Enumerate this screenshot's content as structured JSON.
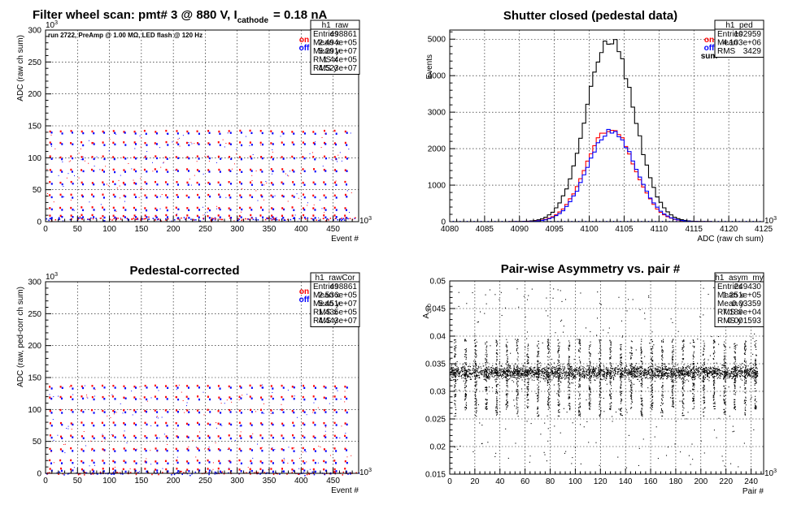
{
  "chart_data": [
    {
      "id": "raw",
      "type": "scatter",
      "title": "Filter wheel scan: pmt#   3 @   880 V, I",
      "title_sub": "cathode",
      "title_tail": "= 0.18 nA",
      "annotation": "run 2722, PreAmp @ 1.00 MΩ, LED flash @  120 Hz",
      "xlabel": "Event #",
      "ylabel": "ADC (raw ch sum)",
      "x_exponent": "10",
      "x_exponent_power": "3",
      "y_exponent": "10",
      "y_exponent_power": "3",
      "xlim": [
        0,
        490
      ],
      "ylim": [
        0,
        300
      ],
      "xticks": [
        "0",
        "50",
        "100",
        "150",
        "200",
        "250",
        "300",
        "350",
        "400",
        "450"
      ],
      "yticks": [
        "0",
        "50",
        "100",
        "150",
        "200",
        "250",
        "300"
      ],
      "grid": true,
      "legend": [
        {
          "label": "on",
          "color": "#ff0000"
        },
        {
          "label": "off",
          "color": "#0000ff"
        }
      ],
      "stats": {
        "name": "h1_raw",
        "rows": [
          [
            "Entries",
            "498861"
          ],
          [
            "Mean x",
            "2.494e+05"
          ],
          [
            "Mean y",
            "5.291e+07"
          ],
          [
            "RMS x",
            "1.44e+05"
          ],
          [
            "RMS y",
            "4.523e+07"
          ]
        ]
      },
      "series": [
        {
          "name": "on",
          "color": "#ff0000"
        },
        {
          "name": "off",
          "color": "#0000ff"
        }
      ],
      "period": 16.5,
      "levels": [
        140,
        122,
        100,
        80,
        60,
        40,
        20,
        8
      ],
      "baseline": 5
    },
    {
      "id": "ped",
      "type": "line",
      "title": "Shutter closed (pedestal data)",
      "xlabel": "ADC (raw ch sum)",
      "ylabel": "Events",
      "x_exponent": "10",
      "x_exponent_power": "3",
      "xlim": [
        4080,
        4125
      ],
      "ylim": [
        0,
        5250
      ],
      "xticks": [
        "4080",
        "4085",
        "4090",
        "4095",
        "4100",
        "4105",
        "4110",
        "4115",
        "4120",
        "4125"
      ],
      "yticks": [
        "0",
        "1000",
        "2000",
        "3000",
        "4000",
        "5000"
      ],
      "grid": true,
      "legend": [
        {
          "label": "on",
          "color": "#ff0000"
        },
        {
          "label": "off",
          "color": "#0000ff"
        },
        {
          "label": "sum",
          "color": "#000000"
        }
      ],
      "stats": {
        "name": "h1_ped",
        "rows": [
          [
            "Entries",
            "102959"
          ],
          [
            "Mean",
            "4.103e+06"
          ],
          [
            "RMS",
            "3429"
          ]
        ]
      },
      "series": [
        {
          "name": "sum",
          "color": "#000000",
          "peak": 5000,
          "mean": 4103,
          "sigma": 3.4
        },
        {
          "name": "on",
          "color": "#ff0000",
          "peak": 2550,
          "mean": 4103,
          "sigma": 3.4
        },
        {
          "name": "off",
          "color": "#0000ff",
          "peak": 2480,
          "mean": 4103.2,
          "sigma": 3.4
        }
      ]
    },
    {
      "id": "cor",
      "type": "scatter",
      "title": "Pedestal-corrected",
      "xlabel": "Event #",
      "ylabel": "ADC (raw, ped-corr ch sum)",
      "x_exponent": "10",
      "x_exponent_power": "3",
      "y_exponent": "10",
      "y_exponent_power": "3",
      "xlim": [
        0,
        490
      ],
      "ylim": [
        0,
        300
      ],
      "xticks": [
        "0",
        "50",
        "100",
        "150",
        "200",
        "250",
        "300",
        "350",
        "400",
        "450"
      ],
      "yticks": [
        "0",
        "50",
        "100",
        "150",
        "200",
        "250",
        "300"
      ],
      "grid": true,
      "legend": [
        {
          "label": "on",
          "color": "#ff0000"
        },
        {
          "label": "off",
          "color": "#0000ff"
        }
      ],
      "stats": {
        "name": "h1_rawCor",
        "rows": [
          [
            "Entries",
            "498861"
          ],
          [
            "Mean x",
            "2.536e+05"
          ],
          [
            "Mean y",
            "5.451e+07"
          ],
          [
            "RMS x",
            "1.435e+05"
          ],
          [
            "RMS y",
            "4.443e+07"
          ]
        ]
      },
      "series": [
        {
          "name": "on",
          "color": "#ff0000"
        },
        {
          "name": "off",
          "color": "#0000ff"
        }
      ],
      "period": 16.5,
      "levels": [
        135,
        118,
        97,
        77,
        57,
        37,
        18,
        5
      ],
      "baseline": 1
    },
    {
      "id": "asym",
      "type": "scatter",
      "title": "Pair-wise Asymmetry vs. pair #",
      "xlabel": "Pair #",
      "ylabel": "A",
      "ylabel_sub": "LED",
      "x_exponent": "10",
      "x_exponent_power": "3",
      "xlim": [
        0,
        250
      ],
      "ylim": [
        0.015,
        0.05
      ],
      "xticks": [
        "0",
        "20",
        "40",
        "60",
        "80",
        "100",
        "120",
        "140",
        "160",
        "180",
        "200",
        "220",
        "240"
      ],
      "yticks": [
        "0.015",
        "0.02",
        "0.025",
        "0.03",
        "0.035",
        "0.04",
        "0.045",
        "0.05"
      ],
      "grid": true,
      "stats": {
        "name": "h1_asym_my",
        "rows": [
          [
            "Entries",
            "249430"
          ],
          [
            "Mean x",
            "1.251e+05"
          ],
          [
            "Mean y",
            "0.03359"
          ],
          [
            "RMS x",
            "7.189e+04"
          ],
          [
            "RMS y",
            "0.001593"
          ]
        ]
      },
      "series": [
        {
          "name": "asym",
          "color": "#000000"
        }
      ],
      "band_center": 0.0335,
      "band_halfwidth": 0.0012,
      "spike_period": 8.25,
      "spike_offset": 4
    }
  ]
}
